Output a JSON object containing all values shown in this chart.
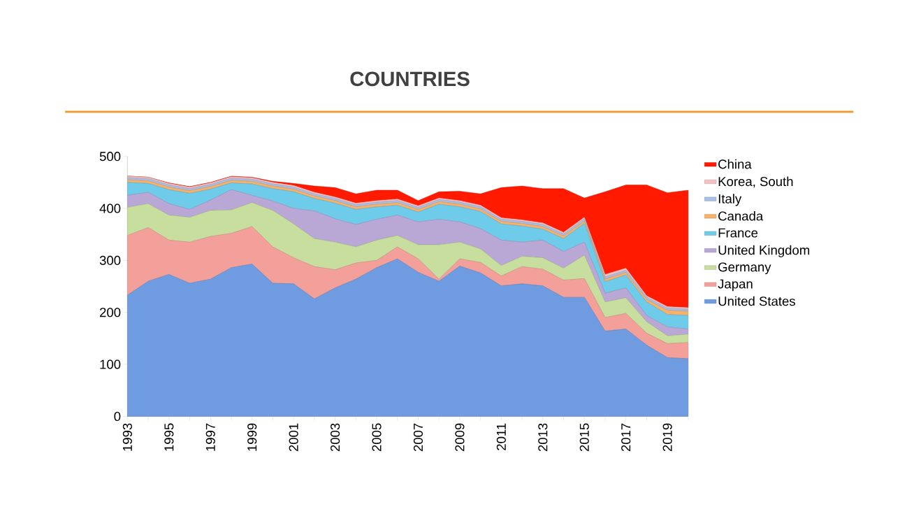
{
  "chart_data": {
    "type": "area",
    "title": "COUNTRIES",
    "stacked": true,
    "legend": "right",
    "grid": false,
    "x": [
      1993,
      1994,
      1995,
      1996,
      1997,
      1998,
      1999,
      2000,
      2001,
      2002,
      2003,
      2004,
      2005,
      2006,
      2007,
      2008,
      2009,
      2010,
      2011,
      2012,
      2013,
      2014,
      2015,
      2016,
      2017,
      2018,
      2019,
      2020
    ],
    "xlim": [
      1993,
      2020
    ],
    "xticks": [
      1993,
      {
        "value": 1994,
        "label": null
      },
      1995,
      {
        "value": 1996,
        "label": null
      },
      1997,
      {
        "value": 1998,
        "label": null
      },
      1999,
      {
        "value": 2000,
        "label": null
      },
      2001,
      {
        "value": 2002,
        "label": null
      },
      2003,
      {
        "value": 2004,
        "label": null
      },
      2005,
      {
        "value": 2006,
        "label": null
      },
      2007,
      {
        "value": 2008,
        "label": null
      },
      2009,
      {
        "value": 2010,
        "label": null
      },
      2011,
      {
        "value": 2012,
        "label": null
      },
      2013,
      {
        "value": 2014,
        "label": null
      },
      2015,
      {
        "value": 2016,
        "label": null
      },
      2017,
      {
        "value": 2018,
        "label": null
      },
      2019,
      {
        "value": 2020,
        "label": null
      }
    ],
    "ylim": [
      0,
      500
    ],
    "yticks": [
      0,
      100,
      200,
      300,
      400,
      500
    ],
    "series": [
      {
        "name": "United States",
        "color": "#6f9be0",
        "values": [
          233,
          260,
          273,
          256,
          264,
          286,
          293,
          256,
          255,
          226,
          247,
          264,
          286,
          303,
          277,
          260,
          289,
          276,
          251,
          255,
          251,
          229,
          229,
          164,
          168,
          137,
          113,
          111
        ]
      },
      {
        "name": "Japan",
        "color": "#f4a09a",
        "values": [
          115,
          103,
          66,
          79,
          82,
          66,
          72,
          70,
          50,
          62,
          35,
          31,
          14,
          23,
          26,
          4,
          14,
          20,
          19,
          33,
          32,
          33,
          36,
          26,
          30,
          23,
          27,
          31
        ]
      },
      {
        "name": "Germany",
        "color": "#c8de9e",
        "values": [
          54,
          46,
          48,
          48,
          50,
          45,
          46,
          70,
          65,
          54,
          53,
          31,
          39,
          22,
          27,
          66,
          32,
          26,
          20,
          20,
          22,
          23,
          45,
          30,
          30,
          22,
          15,
          16
        ]
      },
      {
        "name": "United Kingdom",
        "color": "#b9a7d6",
        "values": [
          23,
          22,
          22,
          15,
          20,
          39,
          14,
          18,
          30,
          53,
          45,
          43,
          40,
          39,
          44,
          49,
          39,
          39,
          49,
          27,
          34,
          32,
          25,
          17,
          19,
          12,
          17,
          10
        ]
      },
      {
        "name": "France",
        "color": "#6fcbea",
        "values": [
          25,
          17,
          27,
          31,
          21,
          13,
          22,
          24,
          32,
          24,
          30,
          29,
          24,
          19,
          19,
          29,
          29,
          33,
          31,
          31,
          21,
          25,
          36,
          22,
          25,
          26,
          24,
          26
        ]
      },
      {
        "name": "Canada",
        "color": "#f6b26b",
        "values": [
          5,
          5,
          5,
          5,
          5,
          5,
          5,
          5,
          5,
          5,
          5,
          5,
          5,
          5,
          5,
          5,
          5,
          5,
          5,
          5,
          5,
          5,
          5,
          5,
          5,
          5,
          8,
          8
        ]
      },
      {
        "name": "Italy",
        "color": "#a9bfe6",
        "values": [
          4,
          4,
          4,
          4,
          4,
          4,
          4,
          4,
          4,
          4,
          4,
          4,
          4,
          4,
          4,
          4,
          4,
          4,
          4,
          4,
          4,
          4,
          4,
          4,
          4,
          4,
          4,
          4
        ]
      },
      {
        "name": "Korea, South",
        "color": "#f4c0c0",
        "values": [
          3,
          3,
          3,
          3,
          3,
          3,
          3,
          3,
          3,
          3,
          3,
          3,
          3,
          3,
          3,
          3,
          3,
          3,
          3,
          3,
          3,
          3,
          3,
          5,
          4,
          3,
          3,
          3
        ]
      },
      {
        "name": "China",
        "color": "#ff1a00",
        "values": [
          0,
          0,
          1,
          1,
          1,
          1,
          1,
          2,
          4,
          12,
          18,
          18,
          20,
          17,
          10,
          12,
          18,
          22,
          58,
          65,
          66,
          84,
          37,
          159,
          160,
          213,
          219,
          226
        ]
      }
    ]
  }
}
